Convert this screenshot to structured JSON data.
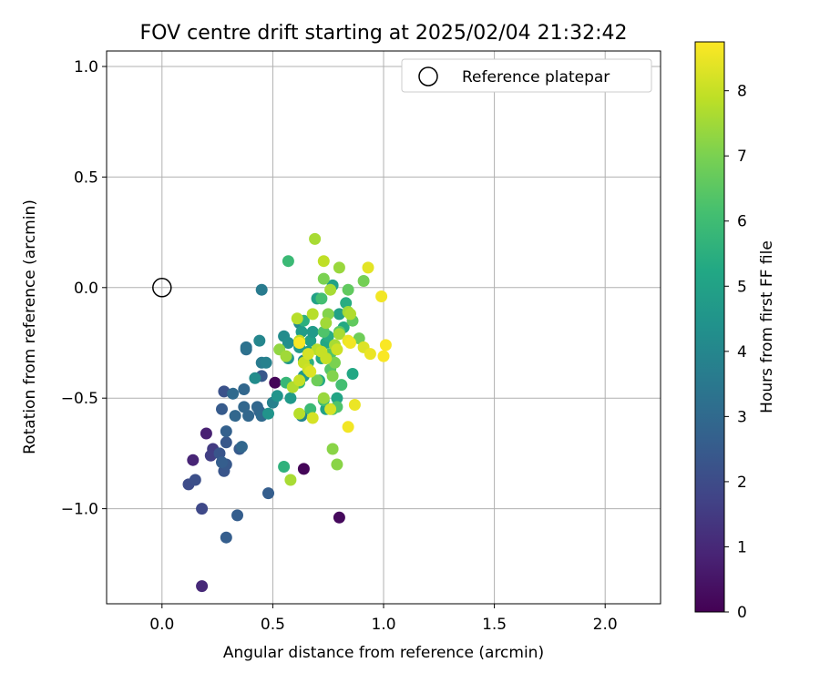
{
  "chart_data": {
    "type": "scatter",
    "title": "FOV centre drift starting at 2025/02/04 21:32:42",
    "xlabel": "Angular distance from reference (arcmin)",
    "ylabel": "Rotation from reference (arcmin)",
    "xlim": [
      -0.25,
      2.25
    ],
    "ylim": [
      -1.43,
      1.07
    ],
    "xticks": [
      0.0,
      0.5,
      1.0,
      1.5,
      2.0
    ],
    "xtick_labels": [
      "0.0",
      "0.5",
      "1.0",
      "1.5",
      "2.0"
    ],
    "yticks": [
      1.0,
      0.5,
      0.0,
      -0.5,
      -1.0
    ],
    "ytick_labels": [
      "1.0",
      "0.5",
      "0.0",
      "−0.5",
      "−1.0"
    ],
    "grid": true,
    "legend": {
      "placement": "top-right",
      "label": "Reference platepar"
    },
    "reference_point": {
      "x": 0.0,
      "y": 0.0
    },
    "colorbar": {
      "label": "Hours from first FF file",
      "colormap": "viridis",
      "range": [
        0,
        8.75
      ],
      "ticks": [
        0,
        1,
        2,
        3,
        4,
        5,
        6,
        7,
        8
      ],
      "tick_labels": [
        "0",
        "1",
        "2",
        "3",
        "4",
        "5",
        "6",
        "7",
        "8"
      ]
    },
    "series": [
      {
        "points": [
          [
            0.51,
            -0.43,
            0.1
          ],
          [
            0.64,
            -0.82,
            0.1
          ],
          [
            0.8,
            -1.04,
            0.2
          ],
          [
            0.2,
            -0.66,
            0.8
          ],
          [
            0.14,
            -0.78,
            0.9
          ],
          [
            0.18,
            -1.35,
            1.0
          ],
          [
            0.23,
            -0.73,
            1.5
          ],
          [
            0.22,
            -0.76,
            1.6
          ],
          [
            0.18,
            -1.0,
            1.9
          ],
          [
            0.12,
            -0.89,
            2.0
          ],
          [
            0.15,
            -0.87,
            2.1
          ],
          [
            0.28,
            -0.47,
            2.2
          ],
          [
            0.26,
            -0.75,
            2.3
          ],
          [
            0.28,
            -0.83,
            2.3
          ],
          [
            0.29,
            -0.8,
            2.4
          ],
          [
            0.27,
            -0.79,
            2.6
          ],
          [
            0.29,
            -0.7,
            2.4
          ],
          [
            0.29,
            -1.13,
            2.6
          ],
          [
            0.35,
            -0.73,
            2.5
          ],
          [
            0.27,
            -0.55,
            2.5
          ],
          [
            0.34,
            -1.03,
            2.6
          ],
          [
            0.29,
            -0.65,
            2.7
          ],
          [
            0.45,
            -0.4,
            2.4
          ],
          [
            0.48,
            -0.93,
            2.6
          ],
          [
            0.44,
            -0.56,
            2.8
          ],
          [
            0.37,
            -0.46,
            2.9
          ],
          [
            0.39,
            -0.58,
            2.9
          ],
          [
            0.37,
            -0.54,
            2.9
          ],
          [
            0.32,
            -0.48,
            3.0
          ],
          [
            0.33,
            -0.58,
            2.9
          ],
          [
            0.36,
            -0.72,
            2.9
          ],
          [
            0.43,
            -0.54,
            2.9
          ],
          [
            0.45,
            -0.58,
            3.0
          ],
          [
            0.38,
            -0.28,
            3.2
          ],
          [
            0.38,
            -0.27,
            3.3
          ],
          [
            0.45,
            -0.34,
            3.6
          ],
          [
            0.47,
            -0.34,
            3.8
          ],
          [
            0.5,
            -0.52,
            3.8
          ],
          [
            0.45,
            -0.01,
            3.6
          ],
          [
            0.44,
            -0.24,
            4.0
          ],
          [
            0.42,
            -0.41,
            4.2
          ],
          [
            0.48,
            -0.57,
            4.5
          ],
          [
            0.55,
            -0.22,
            4.2
          ],
          [
            0.57,
            -0.25,
            4.3
          ],
          [
            0.57,
            -0.32,
            4.6
          ],
          [
            0.62,
            -0.16,
            4.1
          ],
          [
            0.63,
            -0.58,
            4.0
          ],
          [
            0.64,
            -0.33,
            4.2
          ],
          [
            0.64,
            -0.4,
            4.6
          ],
          [
            0.52,
            -0.49,
            4.5
          ],
          [
            0.58,
            -0.5,
            4.7
          ],
          [
            0.62,
            -0.27,
            4.7
          ],
          [
            0.63,
            -0.2,
            4.8
          ],
          [
            0.67,
            -0.24,
            5.0
          ],
          [
            0.68,
            -0.2,
            4.7
          ],
          [
            0.66,
            -0.29,
            4.8
          ],
          [
            0.7,
            -0.05,
            5.0
          ],
          [
            0.71,
            -0.42,
            5.2
          ],
          [
            0.72,
            -0.32,
            5.3
          ],
          [
            0.74,
            -0.25,
            5.2
          ],
          [
            0.75,
            -0.22,
            5.4
          ],
          [
            0.74,
            -0.55,
            5.0
          ],
          [
            0.77,
            0.01,
            5.0
          ],
          [
            0.79,
            -0.5,
            5.1
          ],
          [
            0.8,
            -0.12,
            5.0
          ],
          [
            0.82,
            -0.18,
            5.3
          ],
          [
            0.83,
            -0.07,
            5.4
          ],
          [
            0.86,
            -0.39,
            5.2
          ],
          [
            0.64,
            -0.15,
            5.5
          ],
          [
            0.66,
            -0.34,
            5.6
          ],
          [
            0.55,
            -0.81,
            5.6
          ],
          [
            0.56,
            -0.43,
            5.8
          ],
          [
            0.57,
            0.12,
            5.9
          ],
          [
            0.62,
            -0.43,
            5.8
          ],
          [
            0.67,
            -0.55,
            5.9
          ],
          [
            0.73,
            -0.51,
            6.0
          ],
          [
            0.72,
            -0.05,
            6.1
          ],
          [
            0.77,
            -0.55,
            6.2
          ],
          [
            0.79,
            -0.54,
            6.3
          ],
          [
            0.81,
            -0.44,
            6.1
          ],
          [
            0.73,
            -0.2,
            6.3
          ],
          [
            0.76,
            -0.3,
            6.3
          ],
          [
            0.76,
            -0.37,
            6.4
          ],
          [
            0.8,
            -0.2,
            6.5
          ],
          [
            0.84,
            -0.01,
            6.6
          ],
          [
            0.86,
            -0.15,
            6.6
          ],
          [
            0.89,
            -0.23,
            6.8
          ],
          [
            0.91,
            0.03,
            6.9
          ],
          [
            0.7,
            -0.42,
            6.8
          ],
          [
            0.73,
            0.04,
            7.0
          ],
          [
            0.75,
            -0.12,
            7.1
          ],
          [
            0.77,
            -0.4,
            7.1
          ],
          [
            0.77,
            -0.73,
            7.2
          ],
          [
            0.78,
            -0.34,
            7.0
          ],
          [
            0.79,
            -0.8,
            7.2
          ],
          [
            0.8,
            0.09,
            7.4
          ],
          [
            0.73,
            -0.5,
            7.4
          ],
          [
            0.74,
            -0.16,
            7.5
          ],
          [
            0.76,
            -0.01,
            7.6
          ],
          [
            0.78,
            -0.26,
            7.6
          ],
          [
            0.8,
            -0.21,
            7.6
          ],
          [
            0.84,
            -0.11,
            7.5
          ],
          [
            0.85,
            -0.12,
            7.7
          ],
          [
            0.53,
            -0.28,
            7.3
          ],
          [
            0.56,
            -0.31,
            7.5
          ],
          [
            0.58,
            -0.87,
            7.6
          ],
          [
            0.59,
            -0.45,
            7.7
          ],
          [
            0.61,
            -0.14,
            7.8
          ],
          [
            0.62,
            -0.24,
            7.9
          ],
          [
            0.62,
            -0.57,
            7.8
          ],
          [
            0.62,
            -0.42,
            8.0
          ],
          [
            0.64,
            -0.34,
            8.0
          ],
          [
            0.66,
            -0.37,
            8.1
          ],
          [
            0.68,
            -0.12,
            7.8
          ],
          [
            0.69,
            0.22,
            7.6
          ],
          [
            0.7,
            -0.28,
            7.8
          ],
          [
            0.72,
            -0.29,
            8.0
          ],
          [
            0.74,
            -0.32,
            8.0
          ],
          [
            0.66,
            -0.3,
            8.2
          ],
          [
            0.68,
            -0.59,
            8.2
          ],
          [
            0.67,
            -0.38,
            8.3
          ],
          [
            0.73,
            0.12,
            7.9
          ],
          [
            0.76,
            -0.55,
            8.2
          ],
          [
            0.79,
            -0.28,
            8.1
          ],
          [
            0.84,
            -0.24,
            8.5
          ],
          [
            0.85,
            -0.25,
            8.6
          ],
          [
            0.91,
            -0.27,
            8.3
          ],
          [
            0.84,
            -0.63,
            8.6
          ],
          [
            0.87,
            -0.53,
            8.5
          ],
          [
            0.93,
            0.09,
            8.4
          ],
          [
            0.94,
            -0.3,
            8.5
          ],
          [
            0.99,
            -0.04,
            8.6
          ],
          [
            1.0,
            -0.31,
            8.7
          ],
          [
            1.01,
            -0.26,
            8.7
          ],
          [
            0.62,
            -0.25,
            8.7
          ]
        ]
      }
    ]
  }
}
